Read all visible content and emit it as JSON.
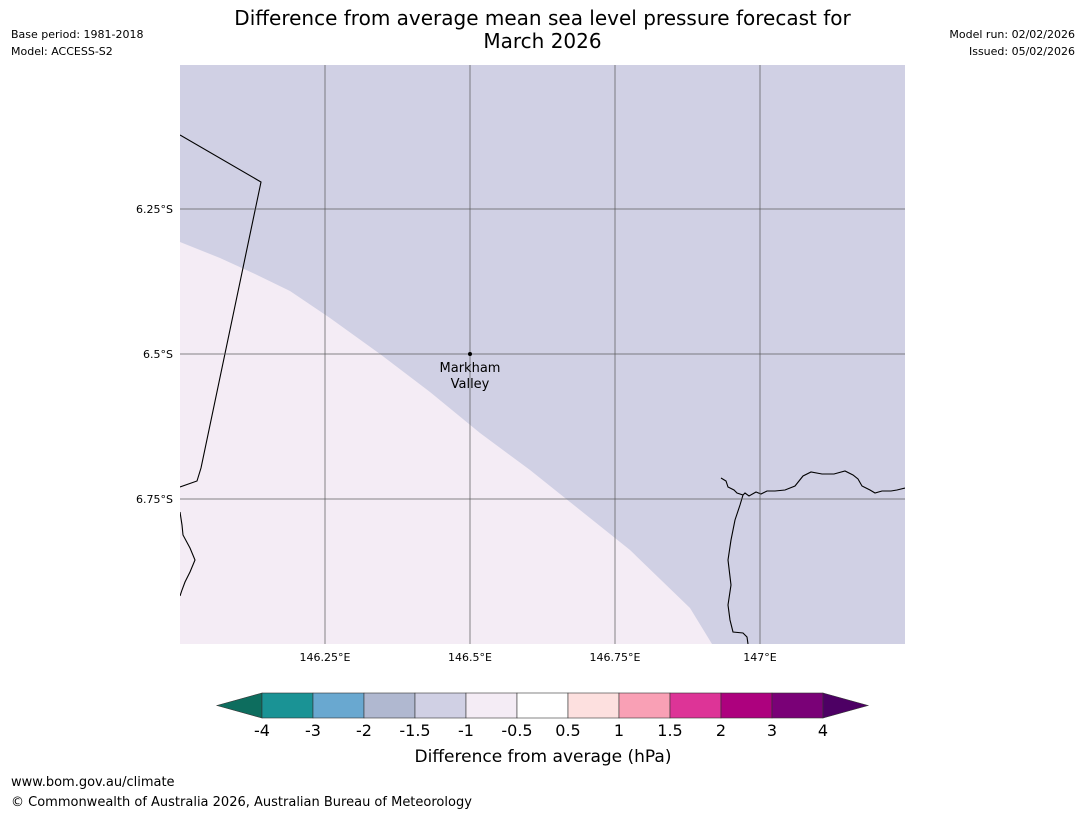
{
  "header": {
    "title_line1": "Difference from average mean sea level pressure forecast for",
    "title_line2": "March 2026",
    "base_period": "Base period: 1981-2018",
    "model": "Model: ACCESS-S2",
    "model_run": "Model run: 02/02/2026",
    "issued": "Issued: 05/02/2026"
  },
  "map": {
    "longitude_labels": [
      "146.25°E",
      "146.5°E",
      "146.75°E",
      "147°E"
    ],
    "latitude_labels": [
      "6.25°S",
      "6.5°S",
      "6.75°S"
    ],
    "location": {
      "name_line1": "Markham",
      "name_line2": "Valley",
      "lon": 146.5,
      "lat": -6.5
    },
    "regions": [
      {
        "name": "-1.5 to -1 hPa",
        "color": "#d0d0e4"
      },
      {
        "name": "-1 to -0.5 hPa",
        "color": "#f4ecf5"
      }
    ]
  },
  "legend": {
    "title": "Difference from average (hPa)",
    "tick_labels": [
      "-4",
      "-3",
      "-2",
      "-1.5",
      "-1",
      "-0.5",
      "0.5",
      "1",
      "1.5",
      "2",
      "3",
      "4"
    ],
    "colors": {
      "below_min": "#0d6d5e",
      "bins": [
        "#1a9395",
        "#69a8d0",
        "#b0b8d0",
        "#d0d0e4",
        "#f4ecf5",
        "#ffffff",
        "#fde0df",
        "#f9a0b5",
        "#dd3497",
        "#ad017e",
        "#7a0177"
      ],
      "above_max": "#4d0064"
    }
  },
  "footer": {
    "url": "www.bom.gov.au/climate",
    "copyright": "© Commonwealth of Australia 2026, Australian Bureau of Meteorology"
  }
}
